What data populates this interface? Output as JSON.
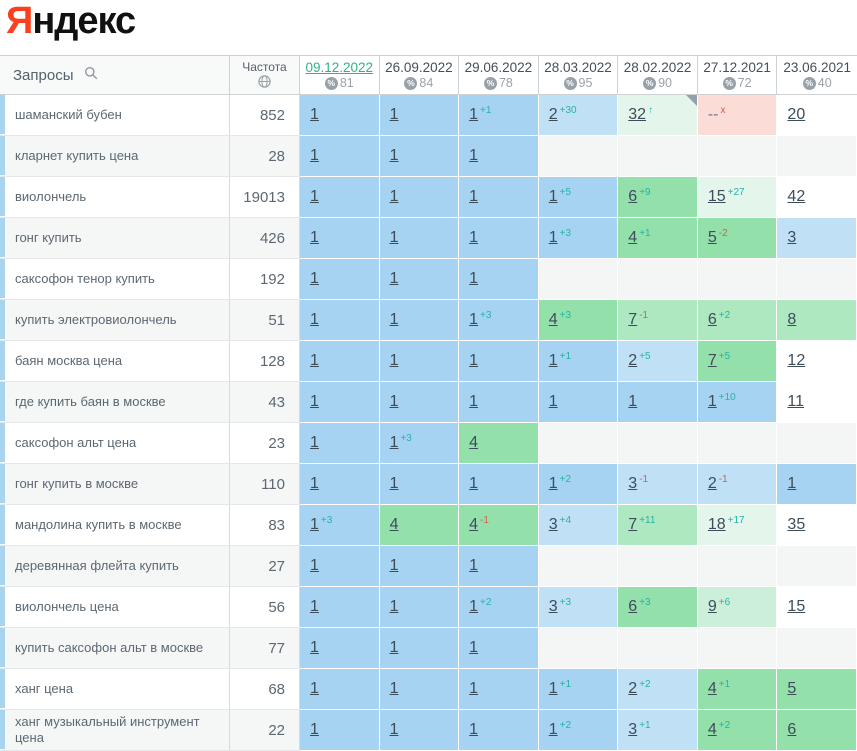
{
  "logo": {
    "ya": "Я",
    "rest": "ндекс"
  },
  "header": {
    "queries_label": "Запросы",
    "frequency_label": "Частота",
    "dates": [
      {
        "label": "09.12.2022",
        "coverage": "81",
        "active": true
      },
      {
        "label": "26.09.2022",
        "coverage": "84",
        "active": false
      },
      {
        "label": "29.06.2022",
        "coverage": "78",
        "active": false
      },
      {
        "label": "28.03.2022",
        "coverage": "95",
        "active": false
      },
      {
        "label": "28.02.2022",
        "coverage": "90",
        "active": false
      },
      {
        "label": "27.12.2021",
        "coverage": "72",
        "active": false
      },
      {
        "label": "23.06.2021",
        "coverage": "40",
        "active": false
      }
    ]
  },
  "colors": {
    "logo_red": "#fc3f1d",
    "link_teal": "#2fb28b",
    "sup_up": "#27b3a4",
    "sup_down": "#d0604f",
    "palette": {
      "b1": "#a6d3f1",
      "b2": "#c0e0f6",
      "g1": "#93e0ab",
      "g2": "#aee8c1",
      "g3": "#cbefd9",
      "g4": "#e4f6ec",
      "w": "#ffffff",
      "e": "#f4f5f5",
      "pk": "#fbdcd7"
    }
  },
  "rows": [
    {
      "query": "шаманский бубен",
      "freq": "852",
      "cells": [
        {
          "v": "1",
          "bg": "b1"
        },
        {
          "v": "1",
          "bg": "b1"
        },
        {
          "v": "1",
          "s": "+1",
          "sc": "up",
          "bg": "b1"
        },
        {
          "v": "2",
          "s": "+30",
          "sc": "up",
          "bg": "b2"
        },
        {
          "v": "32",
          "s": "↑",
          "sc": "up",
          "bg": "g4",
          "corner": true
        },
        {
          "v": "--",
          "s": "x",
          "sc": "down",
          "bg": "pk",
          "nolink": true
        },
        {
          "v": "20",
          "bg": "w"
        }
      ]
    },
    {
      "query": "кларнет купить цена",
      "freq": "28",
      "cells": [
        {
          "v": "1",
          "bg": "b1"
        },
        {
          "v": "1",
          "bg": "b1"
        },
        {
          "v": "1",
          "bg": "b1"
        },
        {
          "bg": "e"
        },
        {
          "bg": "e"
        },
        {
          "bg": "e"
        },
        {
          "bg": "e"
        }
      ]
    },
    {
      "query": "виолончель",
      "freq": "19013",
      "cells": [
        {
          "v": "1",
          "bg": "b1"
        },
        {
          "v": "1",
          "bg": "b1"
        },
        {
          "v": "1",
          "bg": "b1"
        },
        {
          "v": "1",
          "s": "+5",
          "sc": "up",
          "bg": "b1"
        },
        {
          "v": "6",
          "s": "+9",
          "sc": "up",
          "bg": "g1"
        },
        {
          "v": "15",
          "s": "+27",
          "sc": "up",
          "bg": "g4"
        },
        {
          "v": "42",
          "bg": "w"
        }
      ]
    },
    {
      "query": "гонг купить",
      "freq": "426",
      "cells": [
        {
          "v": "1",
          "bg": "b1"
        },
        {
          "v": "1",
          "bg": "b1"
        },
        {
          "v": "1",
          "bg": "b1"
        },
        {
          "v": "1",
          "s": "+3",
          "sc": "up",
          "bg": "b1"
        },
        {
          "v": "4",
          "s": "+1",
          "sc": "up",
          "bg": "g1"
        },
        {
          "v": "5",
          "s": "-2",
          "sc": "down",
          "bg": "g1"
        },
        {
          "v": "3",
          "bg": "b2"
        }
      ]
    },
    {
      "query": "саксофон тенор купить",
      "freq": "192",
      "cells": [
        {
          "v": "1",
          "bg": "b1"
        },
        {
          "v": "1",
          "bg": "b1"
        },
        {
          "v": "1",
          "bg": "b1"
        },
        {
          "bg": "e"
        },
        {
          "bg": "e"
        },
        {
          "bg": "e"
        },
        {
          "bg": "e"
        }
      ]
    },
    {
      "query": "купить электровиолончель",
      "freq": "51",
      "cells": [
        {
          "v": "1",
          "bg": "b1"
        },
        {
          "v": "1",
          "bg": "b1"
        },
        {
          "v": "1",
          "s": "+3",
          "sc": "up",
          "bg": "b1"
        },
        {
          "v": "4",
          "s": "+3",
          "sc": "up",
          "bg": "g1"
        },
        {
          "v": "7",
          "s": "-1",
          "sc": "down",
          "bg": "g2"
        },
        {
          "v": "6",
          "s": "+2",
          "sc": "up",
          "bg": "g2"
        },
        {
          "v": "8",
          "bg": "g2"
        }
      ]
    },
    {
      "query": "баян москва цена",
      "freq": "128",
      "cells": [
        {
          "v": "1",
          "bg": "b1"
        },
        {
          "v": "1",
          "bg": "b1"
        },
        {
          "v": "1",
          "bg": "b1"
        },
        {
          "v": "1",
          "s": "+1",
          "sc": "up",
          "bg": "b1"
        },
        {
          "v": "2",
          "s": "+5",
          "sc": "up",
          "bg": "b2"
        },
        {
          "v": "7",
          "s": "+5",
          "sc": "up",
          "bg": "g1"
        },
        {
          "v": "12",
          "bg": "w"
        }
      ]
    },
    {
      "query": "где купить баян в москве",
      "freq": "43",
      "cells": [
        {
          "v": "1",
          "bg": "b1"
        },
        {
          "v": "1",
          "bg": "b1"
        },
        {
          "v": "1",
          "bg": "b1"
        },
        {
          "v": "1",
          "bg": "b1"
        },
        {
          "v": "1",
          "bg": "b1"
        },
        {
          "v": "1",
          "s": "+10",
          "sc": "up",
          "bg": "b1"
        },
        {
          "v": "11",
          "bg": "w"
        }
      ]
    },
    {
      "query": "саксофон альт цена",
      "freq": "23",
      "cells": [
        {
          "v": "1",
          "bg": "b1"
        },
        {
          "v": "1",
          "s": "+3",
          "sc": "up",
          "bg": "b1"
        },
        {
          "v": "4",
          "bg": "g1"
        },
        {
          "bg": "e"
        },
        {
          "bg": "e"
        },
        {
          "bg": "e"
        },
        {
          "bg": "e"
        }
      ]
    },
    {
      "query": "гонг купить в москве",
      "freq": "110",
      "cells": [
        {
          "v": "1",
          "bg": "b1"
        },
        {
          "v": "1",
          "bg": "b1"
        },
        {
          "v": "1",
          "bg": "b1"
        },
        {
          "v": "1",
          "s": "+2",
          "sc": "up",
          "bg": "b1"
        },
        {
          "v": "3",
          "s": "-1",
          "sc": "down",
          "bg": "b2"
        },
        {
          "v": "2",
          "s": "-1",
          "sc": "down",
          "bg": "b2"
        },
        {
          "v": "1",
          "bg": "b1"
        }
      ]
    },
    {
      "query": "мандолина купить в москве",
      "freq": "83",
      "cells": [
        {
          "v": "1",
          "s": "+3",
          "sc": "up",
          "bg": "b1"
        },
        {
          "v": "4",
          "bg": "g1"
        },
        {
          "v": "4",
          "s": "-1",
          "sc": "down",
          "bg": "g1"
        },
        {
          "v": "3",
          "s": "+4",
          "sc": "up",
          "bg": "b2"
        },
        {
          "v": "7",
          "s": "+11",
          "sc": "up",
          "bg": "g2"
        },
        {
          "v": "18",
          "s": "+17",
          "sc": "up",
          "bg": "g4"
        },
        {
          "v": "35",
          "bg": "w"
        }
      ]
    },
    {
      "query": "деревянная флейта купить",
      "freq": "27",
      "cells": [
        {
          "v": "1",
          "bg": "b1"
        },
        {
          "v": "1",
          "bg": "b1"
        },
        {
          "v": "1",
          "bg": "b1"
        },
        {
          "bg": "e"
        },
        {
          "bg": "e"
        },
        {
          "bg": "e"
        },
        {
          "bg": "e"
        }
      ]
    },
    {
      "query": "виолончель цена",
      "freq": "56",
      "cells": [
        {
          "v": "1",
          "bg": "b1"
        },
        {
          "v": "1",
          "bg": "b1"
        },
        {
          "v": "1",
          "s": "+2",
          "sc": "up",
          "bg": "b1"
        },
        {
          "v": "3",
          "s": "+3",
          "sc": "up",
          "bg": "b2"
        },
        {
          "v": "6",
          "s": "+3",
          "sc": "up",
          "bg": "g1"
        },
        {
          "v": "9",
          "s": "+6",
          "sc": "up",
          "bg": "g3"
        },
        {
          "v": "15",
          "bg": "w"
        }
      ]
    },
    {
      "query": "купить саксофон альт в москве",
      "freq": "77",
      "cells": [
        {
          "v": "1",
          "bg": "b1"
        },
        {
          "v": "1",
          "bg": "b1"
        },
        {
          "v": "1",
          "bg": "b1"
        },
        {
          "bg": "e"
        },
        {
          "bg": "e"
        },
        {
          "bg": "e"
        },
        {
          "bg": "e"
        }
      ]
    },
    {
      "query": "ханг цена",
      "freq": "68",
      "cells": [
        {
          "v": "1",
          "bg": "b1"
        },
        {
          "v": "1",
          "bg": "b1"
        },
        {
          "v": "1",
          "bg": "b1"
        },
        {
          "v": "1",
          "s": "+1",
          "sc": "up",
          "bg": "b1"
        },
        {
          "v": "2",
          "s": "+2",
          "sc": "up",
          "bg": "b2"
        },
        {
          "v": "4",
          "s": "+1",
          "sc": "up",
          "bg": "g1"
        },
        {
          "v": "5",
          "bg": "g1"
        }
      ]
    },
    {
      "query": "ханг музыкальный инструмент цена",
      "freq": "22",
      "cells": [
        {
          "v": "1",
          "bg": "b1"
        },
        {
          "v": "1",
          "bg": "b1"
        },
        {
          "v": "1",
          "bg": "b1"
        },
        {
          "v": "1",
          "s": "+2",
          "sc": "up",
          "bg": "b1"
        },
        {
          "v": "3",
          "s": "+1",
          "sc": "up",
          "bg": "b2"
        },
        {
          "v": "4",
          "s": "+2",
          "sc": "up",
          "bg": "g1"
        },
        {
          "v": "6",
          "bg": "g1"
        }
      ]
    }
  ]
}
